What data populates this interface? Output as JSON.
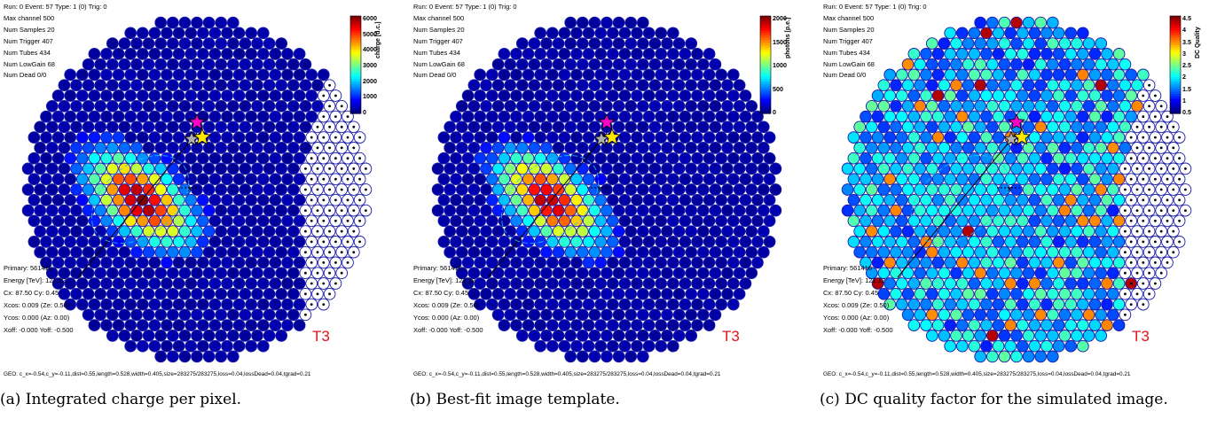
{
  "panels": [
    {
      "id": "a",
      "info_lines": [
        "Run: 0 Event: 57  Type: 1 (0) Trig: 0",
        "Max channel 500",
        "Num Samples 20",
        "Num Trigger 407",
        "Num Tubes 434",
        "Num LowGain 68",
        "Num Dead 0/0"
      ],
      "colorbar_label": "charge [d.c.]",
      "colorbar_ticks": [
        "6000",
        "5000",
        "4000",
        "3000",
        "2000",
        "1000",
        "0"
      ],
      "params": [
        "Primary: 561416",
        "Energy [TeV]: 121.12",
        "Cx: 87.50 Cy: 0.45",
        "Xcos: 0.009 (Ze: 0.50)",
        "Ycos: 0.000 (Az: 0.00)",
        "Xoff: -0.000 Yoff: -0.500"
      ],
      "telescope": "T3",
      "geo": "GEO: c_x=-0.54,c_y=-0.11,dist=0.55,length=0.528,width=0.405,size=283275/283275,loss=0.04,lossDead=0.04,tgrad=0.21",
      "caption": "(a) Integrated charge per pixel.",
      "mode": "charge"
    },
    {
      "id": "b",
      "info_lines": [
        "Run: 0 Event: 57  Type: 1 (0) Trig: 0",
        "Max channel 500",
        "Num Samples 20",
        "Num Trigger 407",
        "Num Tubes 434",
        "Num LowGain 68",
        "Num Dead 0/0"
      ],
      "colorbar_label": "photons [p.e.]",
      "colorbar_ticks": [
        "2000",
        "1500",
        "1000",
        "500",
        "0"
      ],
      "params": [
        "Primary: 561416",
        "Energy [TeV]: 121.12",
        "Cx: 87.50 Cy: 0.45",
        "Xcos: 0.009 (Ze: 0.50)",
        "Ycos: 0.000 (Az: 0.00)",
        "Xoff: -0.000 Yoff: -0.500"
      ],
      "telescope": "T3",
      "geo": "GEO: c_x=-0.54,c_y=-0.11,dist=0.55,length=0.528,width=0.405,size=283275/283275,loss=0.04,lossDead=0.04,tgrad=0.21",
      "caption": "(b) Best-fit image template.",
      "mode": "template"
    },
    {
      "id": "c",
      "info_lines": [
        "Run: 0 Event: 57  Type: 1 (0) Trig: 0",
        "Max channel 500",
        "Num Samples 20",
        "Num Trigger 407",
        "Num Tubes 434",
        "Num LowGain 68",
        "Num Dead 0/0"
      ],
      "colorbar_label": "DC Quality",
      "colorbar_ticks": [
        "4.5",
        "4",
        "3.5",
        "3",
        "2.5",
        "2",
        "1.5",
        "1",
        "0.5"
      ],
      "params": [
        "Primary: 561416",
        "Energy [TeV]: 121.12",
        "Cx: 87.50 Cy: 0.45",
        "Xcos: 0.009 (Ze: 0.50)",
        "Ycos: 0.000 (Az: 0.00)",
        "Xoff: -0.000 Yoff: -0.500"
      ],
      "telescope": "T3",
      "geo": "GEO: c_x=-0.54,c_y=-0.11,dist=0.55,length=0.528,width=0.405,size=283275/283275,loss=0.04,lossDead=0.04,tgrad=0.21",
      "caption": "(c) DC quality factor for the simulated image.",
      "mode": "quality"
    }
  ],
  "colors": {
    "ring": "#1a1aa8",
    "camera_bg": "#0a0a7a",
    "telescope_label": "#e3141c",
    "star_primary": "#ffe800",
    "star_secondary": "#ff00c8",
    "star_tertiary": "#b0b0b0"
  }
}
